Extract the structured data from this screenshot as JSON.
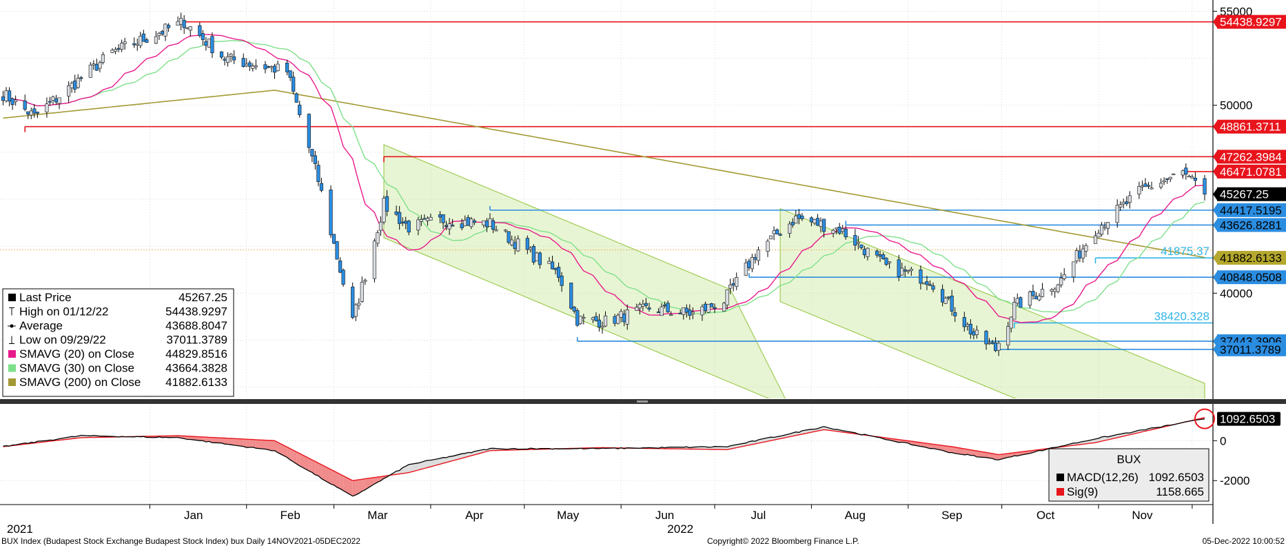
{
  "chart_data": [
    {
      "type": "candlestick",
      "y_ticks": [
        55000,
        50000,
        40000
      ],
      "y_tick_labels": [
        "55000",
        "50000",
        "40000"
      ],
      "ylim": [
        34400,
        55600
      ],
      "x_months": [
        "Jan",
        "Feb",
        "Mar",
        "Apr",
        "May",
        "Jun",
        "Jul",
        "Aug",
        "Sep",
        "Oct",
        "Nov"
      ],
      "x_years": [
        "2021",
        "2022"
      ],
      "legend": {
        "rows": [
          {
            "label": "Last Price",
            "value": "45267.25",
            "marker": "square",
            "color": "#000000"
          },
          {
            "label": "High on 01/12/22",
            "value": "54438.9297",
            "marker": "high",
            "color": "#000000"
          },
          {
            "label": "Average",
            "value": "43688.8047",
            "marker": "avg",
            "color": "#000000"
          },
          {
            "label": "Low on 09/29/22",
            "value": "37011.3789",
            "marker": "low",
            "color": "#000000"
          },
          {
            "label": "SMAVG (20)  on Close",
            "value": "44829.8516",
            "marker": "square",
            "color": "#e8198b"
          },
          {
            "label": "SMAVG (30)  on Close",
            "value": "43664.3828",
            "marker": "square",
            "color": "#7ee08a"
          },
          {
            "label": "SMAVG (200)  on Close",
            "value": "41882.6133",
            "marker": "square",
            "color": "#a39a35"
          }
        ]
      },
      "price_tags": [
        {
          "value": 54438.9297,
          "label": "54438.9297",
          "bg": "#e8141c",
          "fg": "#ffffff"
        },
        {
          "value": 48861.3711,
          "label": "48861.3711",
          "bg": "#e8141c",
          "fg": "#ffffff"
        },
        {
          "value": 47262.3984,
          "label": "47262.3984",
          "bg": "#e8141c",
          "fg": "#ffffff"
        },
        {
          "value": 46471.0781,
          "label": "46471.0781",
          "bg": "#e8141c",
          "fg": "#ffffff"
        },
        {
          "value": 45267.25,
          "label": "45267.25",
          "bg": "#000000",
          "fg": "#ffffff"
        },
        {
          "value": 44417.5195,
          "label": "44417.5195",
          "bg": "#2b8de0",
          "fg": "#000000"
        },
        {
          "value": 43626.8281,
          "label": "43626.8281",
          "bg": "#2b8de0",
          "fg": "#000000"
        },
        {
          "value": 41882.6133,
          "label": "41882.6133",
          "bg": "#b5a82e",
          "fg": "#000000"
        },
        {
          "value": 40848.0508,
          "label": "40848.0508",
          "bg": "#2b8de0",
          "fg": "#000000"
        },
        {
          "value": 37443.3906,
          "label": "37443.3906",
          "bg": "#2b8de0",
          "fg": "#000000"
        },
        {
          "value": 37011.3789,
          "label": "37011.3789",
          "bg": "#2b8de0",
          "fg": "#000000"
        }
      ],
      "annotations": [
        {
          "value": 41875.37,
          "label": "41875.37"
        },
        {
          "value": 38420.328,
          "label": "38420.328"
        }
      ],
      "key_points": [
        {
          "date": "2021-11-15",
          "close": 50600
        },
        {
          "date": "2021-11-25",
          "close": 49400
        },
        {
          "date": "2021-12-20",
          "close": 52800
        },
        {
          "date": "2022-01-12",
          "close": 54439
        },
        {
          "date": "2022-01-25",
          "close": 52500
        },
        {
          "date": "2022-02-14",
          "close": 51800
        },
        {
          "date": "2022-02-24",
          "close": 46000
        },
        {
          "date": "2022-03-07",
          "close": 38500
        },
        {
          "date": "2022-03-17",
          "close": 44700
        },
        {
          "date": "2022-03-25",
          "close": 43500
        },
        {
          "date": "2022-04-05",
          "close": 43900
        },
        {
          "date": "2022-04-20",
          "close": 43700
        },
        {
          "date": "2022-05-12",
          "close": 41000
        },
        {
          "date": "2022-05-18",
          "close": 38600
        },
        {
          "date": "2022-05-27",
          "close": 38500
        },
        {
          "date": "2022-06-10",
          "close": 39200
        },
        {
          "date": "2022-06-24",
          "close": 38900
        },
        {
          "date": "2022-07-04",
          "close": 39600
        },
        {
          "date": "2022-07-15",
          "close": 42300
        },
        {
          "date": "2022-07-27",
          "close": 44000
        },
        {
          "date": "2022-08-10",
          "close": 43400
        },
        {
          "date": "2022-08-25",
          "close": 41400
        },
        {
          "date": "2022-09-08",
          "close": 40700
        },
        {
          "date": "2022-09-22",
          "close": 37800
        },
        {
          "date": "2022-09-29",
          "close": 37011
        },
        {
          "date": "2022-10-05",
          "close": 39300
        },
        {
          "date": "2022-10-20",
          "close": 40700
        },
        {
          "date": "2022-10-31",
          "close": 43400
        },
        {
          "date": "2022-11-15",
          "close": 45500
        },
        {
          "date": "2022-11-28",
          "close": 46400
        },
        {
          "date": "2022-12-05",
          "close": 45267
        }
      ]
    },
    {
      "type": "line",
      "legend": {
        "title": "BUX",
        "rows": [
          {
            "label": "MACD(12,26)",
            "value": "1092.6503",
            "color": "#000000"
          },
          {
            "label": "Sig(9)",
            "value": "1158.665",
            "color": "#e8141c"
          }
        ]
      },
      "y_ticks": [
        0,
        -2000
      ],
      "y_tick_labels": [
        "0",
        "-2000"
      ],
      "ylim": [
        -3200,
        1700
      ],
      "current_tag": {
        "value": 1092.6503,
        "label": "1092.6503",
        "bg": "#000000",
        "fg": "#ffffff"
      },
      "key_points": [
        {
          "date": "2021-11-15",
          "macd": -300,
          "sig": -300
        },
        {
          "date": "2021-12-10",
          "macd": 250,
          "sig": 150
        },
        {
          "date": "2022-01-10",
          "macd": 150,
          "sig": 250
        },
        {
          "date": "2022-02-10",
          "macd": -500,
          "sig": 0
        },
        {
          "date": "2022-03-07",
          "macd": -2800,
          "sig": -2000
        },
        {
          "date": "2022-03-25",
          "macd": -1200,
          "sig": -1600
        },
        {
          "date": "2022-04-20",
          "macd": -400,
          "sig": -500
        },
        {
          "date": "2022-05-25",
          "macd": -400,
          "sig": -350
        },
        {
          "date": "2022-07-05",
          "macd": -300,
          "sig": -450
        },
        {
          "date": "2022-08-05",
          "macd": 700,
          "sig": 550
        },
        {
          "date": "2022-09-15",
          "macd": -600,
          "sig": -300
        },
        {
          "date": "2022-09-30",
          "macd": -950,
          "sig": -700
        },
        {
          "date": "2022-10-31",
          "macd": 100,
          "sig": -100
        },
        {
          "date": "2022-12-05",
          "macd": 1092.65,
          "sig": 1158.665
        }
      ]
    }
  ],
  "footer": {
    "left": "BUX Index (Budapest Stock Exchange Budapest Stock Index) bux  Daily 14NOV2021-05DEC2022",
    "center": "Copyright© 2022 Bloomberg Finance L.P.",
    "right": "05-Dec-2022 10:00:52"
  },
  "colors": {
    "candle_up": "#d9dde2",
    "candle_down": "#2b8de0",
    "sma20": "#e8198b",
    "sma30": "#7ee08a",
    "sma200": "#a39a35",
    "resistance": "#e8141c",
    "support": "#2b8de0",
    "channel": "#b9e07a"
  }
}
